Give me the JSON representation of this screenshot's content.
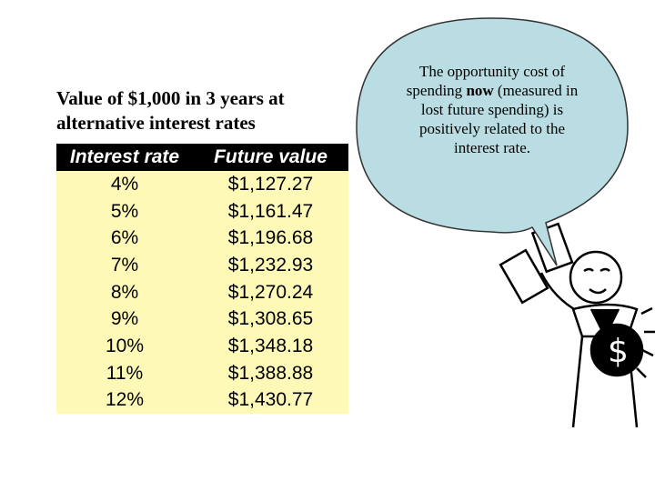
{
  "title": [
    "Value of $1,000 in 3 years at",
    "alternative interest rates"
  ],
  "table": {
    "header": [
      "Interest rate",
      "Future value"
    ],
    "rows": [
      [
        "4%",
        "$1,127.27"
      ],
      [
        "5%",
        "$1,161.47"
      ],
      [
        "6%",
        "$1,196.68"
      ],
      [
        "7%",
        "$1,232.93"
      ],
      [
        "8%",
        "$1,270.24"
      ],
      [
        "9%",
        "$1,308.65"
      ],
      [
        "10%",
        "$1,348.18"
      ],
      [
        "11%",
        "$1,388.88"
      ],
      [
        "12%",
        "$1,430.77"
      ]
    ]
  },
  "callout": [
    "The opportunity cost of spending ",
    "now",
    " (measured in lost future spending) is positively related to the interest rate."
  ]
}
